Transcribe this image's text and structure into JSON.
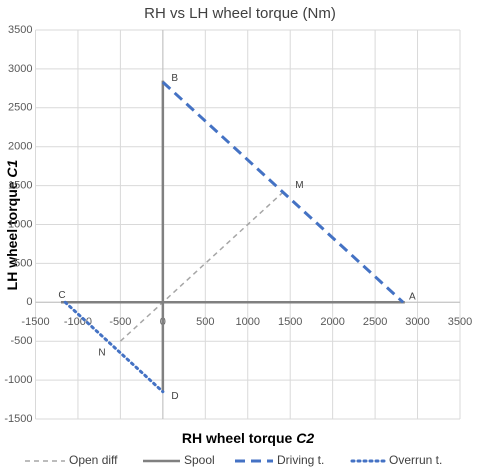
{
  "chart_data": {
    "type": "line",
    "title": "RH vs LH wheel torque (Nm)",
    "xlabel": "RH wheel torque",
    "xlabel_var": "C2",
    "ylabel": "LH wheel torque",
    "ylabel_var": "C1",
    "xlim": [
      -1500,
      3500
    ],
    "ylim": [
      -1500,
      3500
    ],
    "xticks": [
      -1500,
      -1000,
      -500,
      0,
      500,
      1000,
      1500,
      2000,
      2500,
      3000,
      3500
    ],
    "yticks": [
      -1500,
      -1000,
      -500,
      0,
      500,
      1000,
      1500,
      2000,
      2500,
      3000,
      3500
    ],
    "grid": true,
    "legend": "bottom",
    "series": [
      {
        "name": "Open diff",
        "color": "#a6a6a6",
        "style": "dashed",
        "x": [
          -500,
          1450
        ],
        "values": [
          -500,
          1450
        ]
      },
      {
        "name": "Spool",
        "color": "#808080",
        "style": "solid",
        "x": [
          0,
          0,
          null,
          -1200,
          2850
        ],
        "values": [
          2850,
          -1150,
          null,
          0,
          0
        ]
      },
      {
        "name": "Driving t.",
        "color": "#4472c4",
        "style": "dashed",
        "x": [
          0,
          2830
        ],
        "values": [
          2830,
          0
        ]
      },
      {
        "name": "Overrun t.",
        "color": "#4472c4",
        "style": "dotted",
        "x": [
          -1150,
          0
        ],
        "values": [
          0,
          -1150
        ]
      }
    ],
    "annotations": [
      {
        "text": "A",
        "x": 2900,
        "y": 70
      },
      {
        "text": "B",
        "x": 100,
        "y": 2880
      },
      {
        "text": "C",
        "x": -1230,
        "y": 90
      },
      {
        "text": "D",
        "x": 100,
        "y": -1210
      },
      {
        "text": "M",
        "x": 1560,
        "y": 1500
      },
      {
        "text": "N",
        "x": -760,
        "y": -650
      }
    ]
  }
}
